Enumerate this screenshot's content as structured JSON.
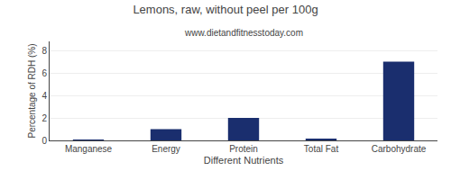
{
  "chart_data": {
    "type": "bar",
    "title": "Lemons, raw, without peel per 100g",
    "subtitle": "www.dietandfitnesstoday.com",
    "categories": [
      "Manganese",
      "Energy",
      "Protein",
      "Total Fat",
      "Carbohydrate"
    ],
    "values": [
      0.03,
      1.0,
      2.0,
      0.1,
      7.0
    ],
    "color": "#1a2e6e",
    "xlabel": "Different Nutrients",
    "ylabel": "Percentage of RDH (%)",
    "ylim": [
      0,
      8.8
    ],
    "yticks": [
      0,
      2,
      4,
      6,
      8
    ],
    "grid": true
  }
}
